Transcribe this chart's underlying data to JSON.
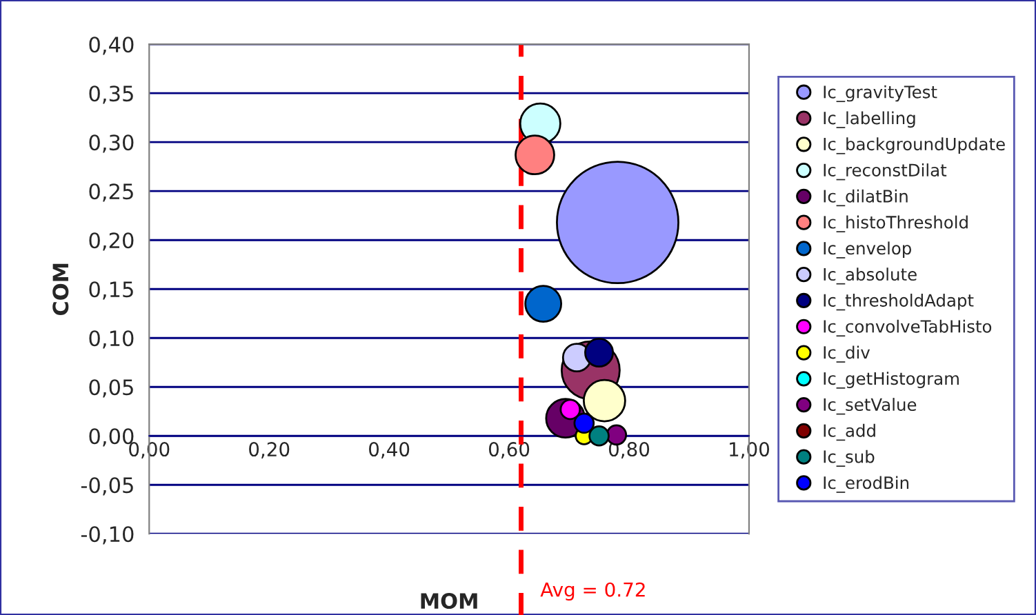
{
  "chart_data": {
    "type": "bubble",
    "xlabel": "MOM",
    "ylabel": "COM",
    "xlim": [
      0,
      1
    ],
    "ylim": [
      -0.1,
      0.4
    ],
    "xticks": [
      {
        "value": 0,
        "label": "0,00"
      },
      {
        "value": 0.2,
        "label": "0,20"
      },
      {
        "value": 0.4,
        "label": "0,40"
      },
      {
        "value": 0.6,
        "label": "0,60"
      },
      {
        "value": 0.8,
        "label": "0,80"
      },
      {
        "value": 1,
        "label": "1,00"
      }
    ],
    "yticks": [
      {
        "value": -0.1,
        "label": "-0,10"
      },
      {
        "value": -0.05,
        "label": "-0,05"
      },
      {
        "value": 0,
        "label": "0,00"
      },
      {
        "value": 0.05,
        "label": "0,05"
      },
      {
        "value": 0.1,
        "label": "0,10"
      },
      {
        "value": 0.15,
        "label": "0,15"
      },
      {
        "value": 0.2,
        "label": "0,20"
      },
      {
        "value": 0.25,
        "label": "0,25"
      },
      {
        "value": 0.3,
        "label": "0,30"
      },
      {
        "value": 0.35,
        "label": "0,35"
      },
      {
        "value": 0.4,
        "label": "0,40"
      }
    ],
    "grid": "y",
    "legend": "right",
    "ref_lines": [
      {
        "axis": "x",
        "value": 0.62,
        "color": "#ff0000",
        "line_style": "dashed"
      }
    ],
    "annotations": [
      "Avg = 0.72"
    ],
    "series": [
      {
        "name": "Ic_gravityTest",
        "color": "#9999ff",
        "x": [
          0.781
        ],
        "values": [
          0.218
        ],
        "sizes": [
          1
        ]
      },
      {
        "name": "Ic_labelling",
        "color": "#993366",
        "x": [
          0.736
        ],
        "values": [
          0.067
        ],
        "sizes": [
          0.228
        ]
      },
      {
        "name": "Ic_backgroundUpdate",
        "color": "#ffffcc",
        "x": [
          0.759
        ],
        "values": [
          0.036
        ],
        "sizes": [
          0.116
        ]
      },
      {
        "name": "Ic_reconstDilat",
        "color": "#ccffff",
        "x": [
          0.652
        ],
        "values": [
          0.319
        ],
        "sizes": [
          0.109
        ]
      },
      {
        "name": "Ic_dilatBin",
        "color": "#660066",
        "x": [
          0.694
        ],
        "values": [
          0.018
        ],
        "sizes": [
          0.101
        ]
      },
      {
        "name": "Ic_histoThreshold",
        "color": "#ff8080",
        "x": [
          0.643
        ],
        "values": [
          0.287
        ],
        "sizes": [
          0.101
        ]
      },
      {
        "name": "Ic_envelop",
        "color": "#0066cc",
        "x": [
          0.657
        ],
        "values": [
          0.135
        ],
        "sizes": [
          0.087
        ]
      },
      {
        "name": "Ic_absolute",
        "color": "#ccccff",
        "x": [
          0.713
        ],
        "values": [
          0.08
        ],
        "sizes": [
          0.052
        ]
      },
      {
        "name": "Ic_thresholdAdapt",
        "color": "#000080",
        "x": [
          0.75
        ],
        "values": [
          0.085
        ],
        "sizes": [
          0.052
        ]
      },
      {
        "name": "Ic_convolveTabHisto",
        "color": "#ff00ff",
        "x": [
          0.702
        ],
        "values": [
          0.027
        ],
        "sizes": [
          0.025
        ]
      },
      {
        "name": "Ic_div",
        "color": "#ffff00",
        "x": [
          0.725
        ],
        "values": [
          0.0
        ],
        "sizes": [
          0.019
        ]
      },
      {
        "name": "Ic_getHistogram",
        "color": "#00ffff",
        "x": [
          null
        ],
        "values": [
          null
        ],
        "sizes": [
          null
        ]
      },
      {
        "name": "Ic_setValue",
        "color": "#800080",
        "x": [
          0.779
        ],
        "values": [
          0.001
        ],
        "sizes": [
          0.025
        ]
      },
      {
        "name": "Ic_add",
        "color": "#800000",
        "x": [
          null
        ],
        "values": [
          null
        ],
        "sizes": [
          null
        ]
      },
      {
        "name": "Ic_sub",
        "color": "#008080",
        "x": [
          0.75
        ],
        "values": [
          0.0
        ],
        "sizes": [
          0.025
        ]
      },
      {
        "name": "Ic_erodBin",
        "color": "#0000ff",
        "x": [
          0.725
        ],
        "values": [
          0.013
        ],
        "sizes": [
          0.025
        ]
      }
    ]
  }
}
